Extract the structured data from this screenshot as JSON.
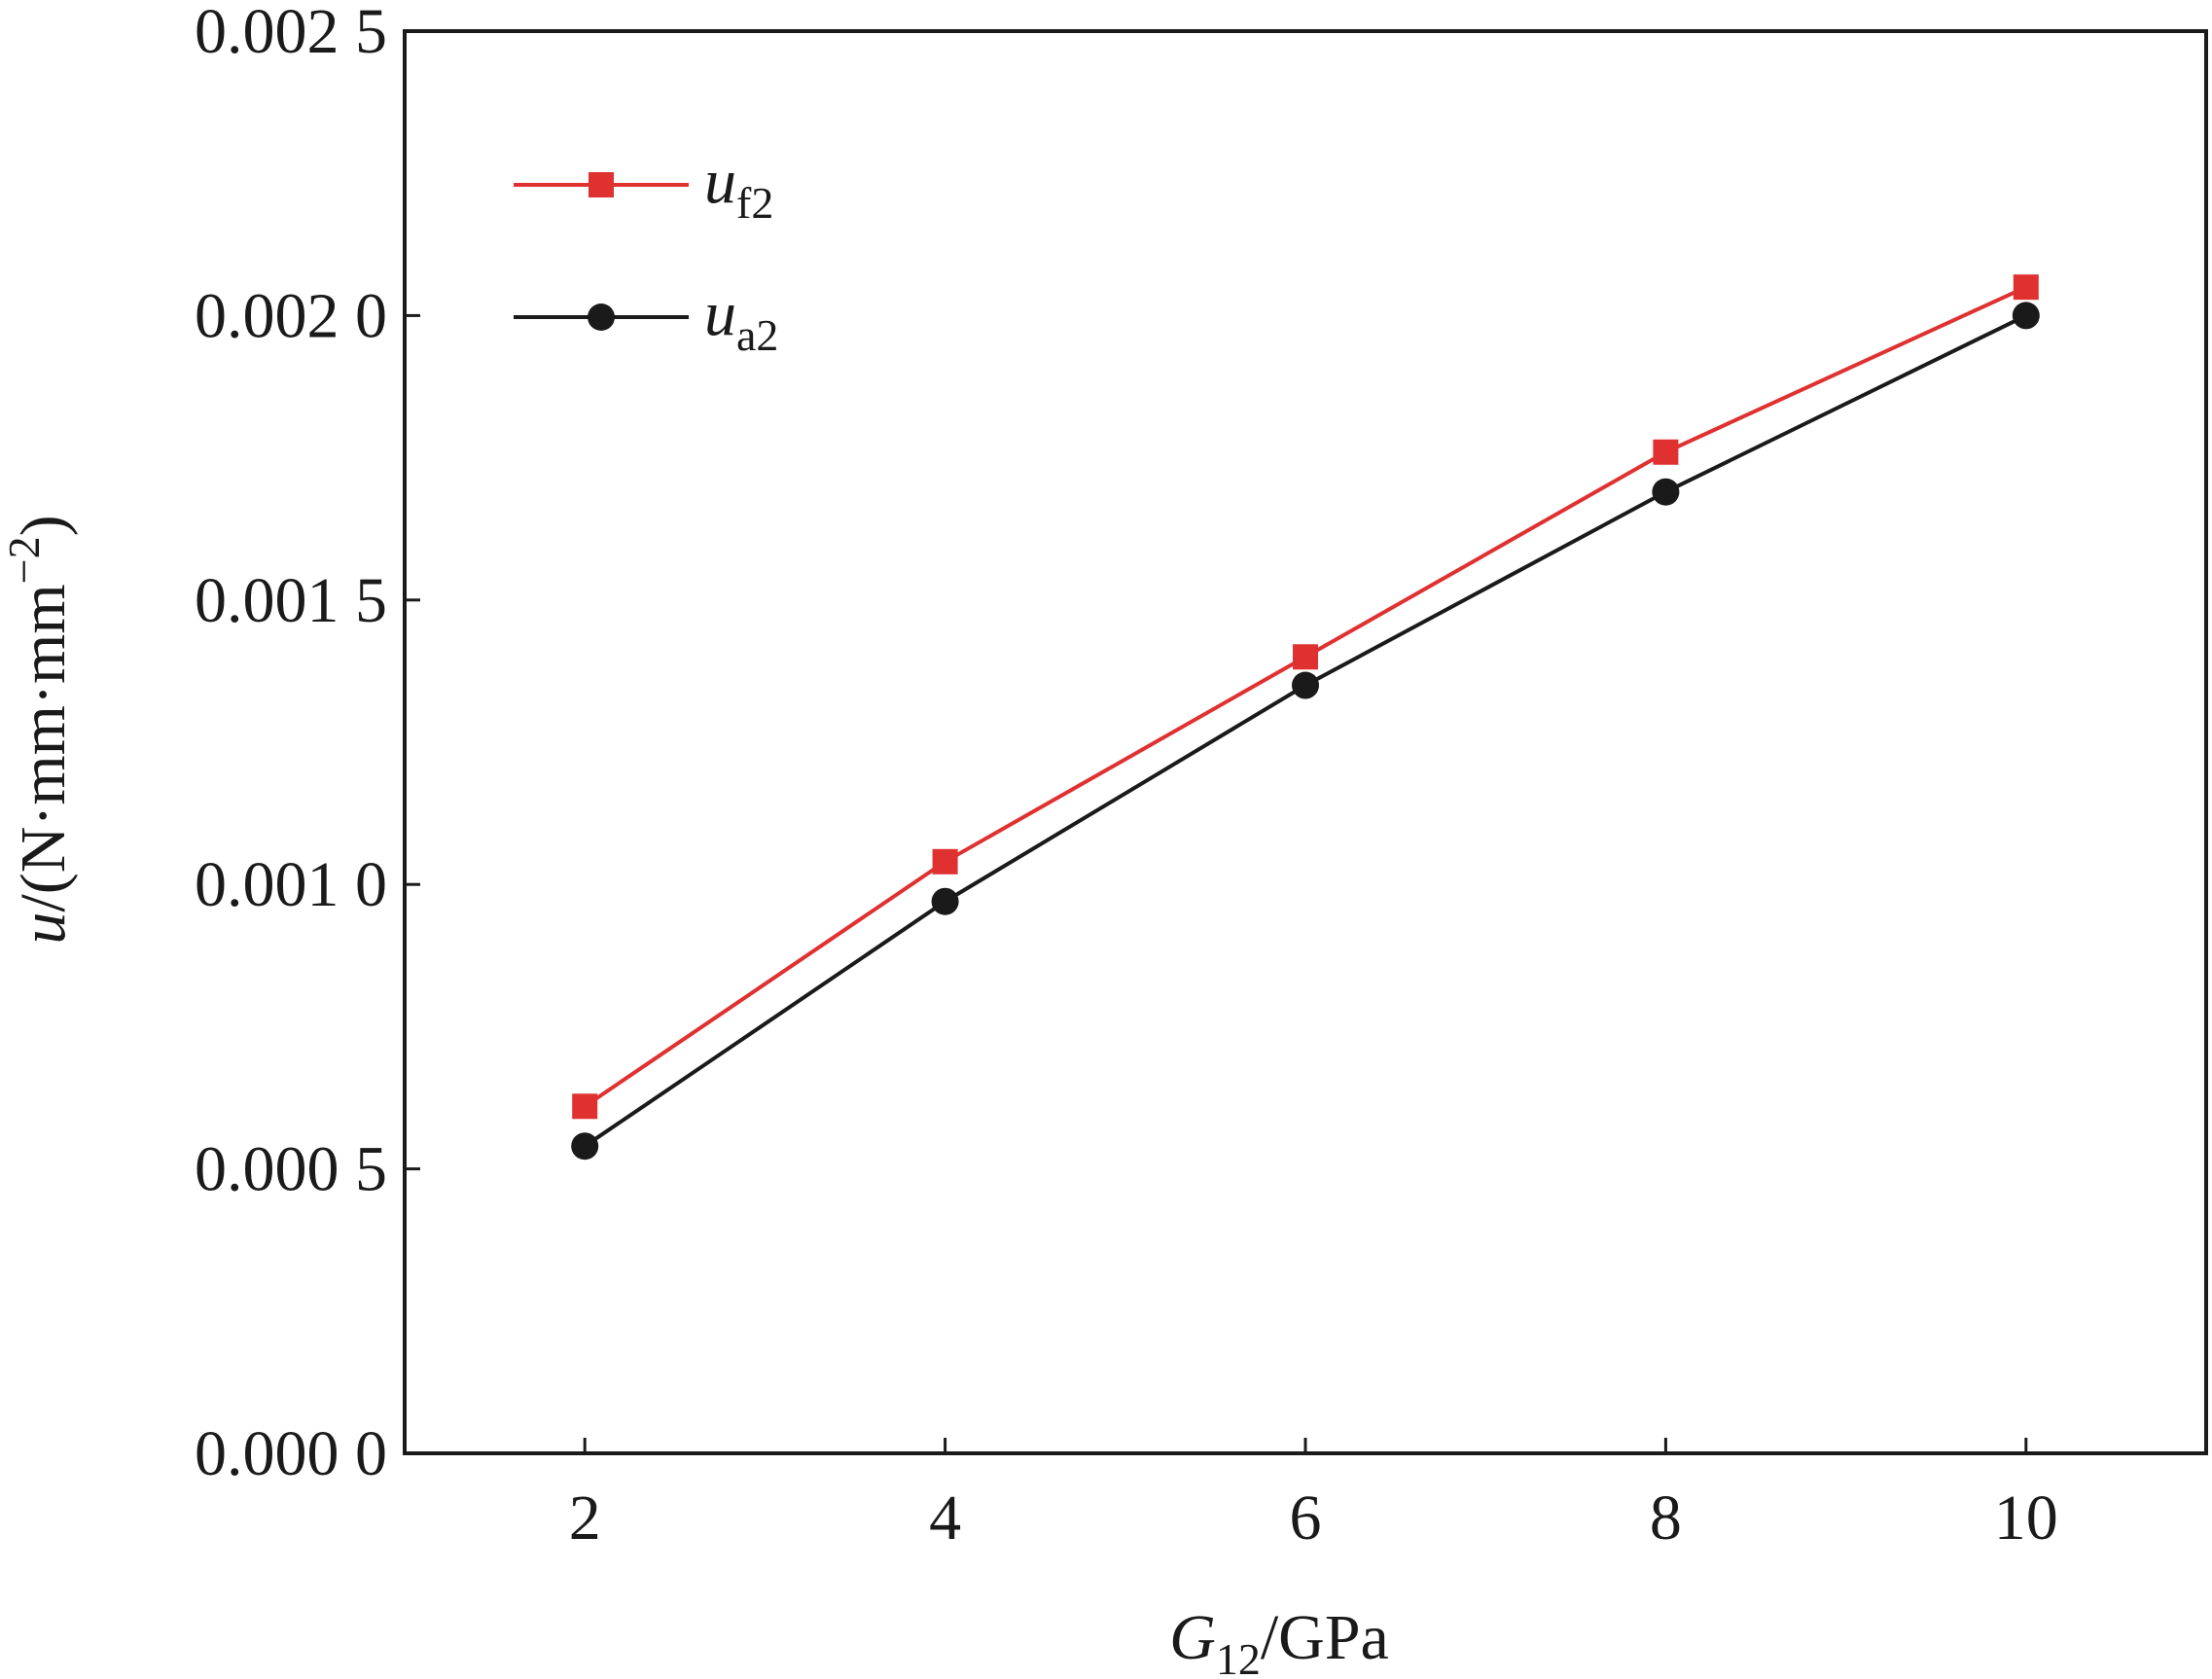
{
  "chart_data": {
    "type": "line",
    "title": "",
    "x": [
      2,
      4,
      6,
      8,
      10
    ],
    "xlim": [
      1,
      11
    ],
    "ylim": [
      0,
      0.0025
    ],
    "x_ticks": [
      2,
      4,
      6,
      8,
      10
    ],
    "x_tick_labels": [
      "2",
      "4",
      "6",
      "8",
      "10"
    ],
    "y_ticks": [
      0,
      0.0005,
      0.001,
      0.0015,
      0.002,
      0.0025
    ],
    "y_tick_labels": [
      "0.000 0",
      "0.000 5",
      "0.001 0",
      "0.001 5",
      "0.002 0",
      "0.002 5"
    ],
    "xlabel": {
      "var": "G",
      "sub": "12",
      "unit": "/GPa"
    },
    "ylabel": {
      "var": "u",
      "unit": "/(N·mm·mm",
      "sup": "−2",
      "close": ")"
    },
    "grid": false,
    "legend_position": "top-left",
    "series": [
      {
        "var": "u",
        "sub": "f2",
        "color": "#e03131",
        "marker": "square",
        "values": [
          0.00061,
          0.00104,
          0.0014,
          0.00176,
          0.00205
        ]
      },
      {
        "var": "u",
        "sub": "a2",
        "color": "#1a1a1a",
        "marker": "circle",
        "values": [
          0.00054,
          0.00097,
          0.00135,
          0.00169,
          0.002
        ]
      }
    ]
  }
}
